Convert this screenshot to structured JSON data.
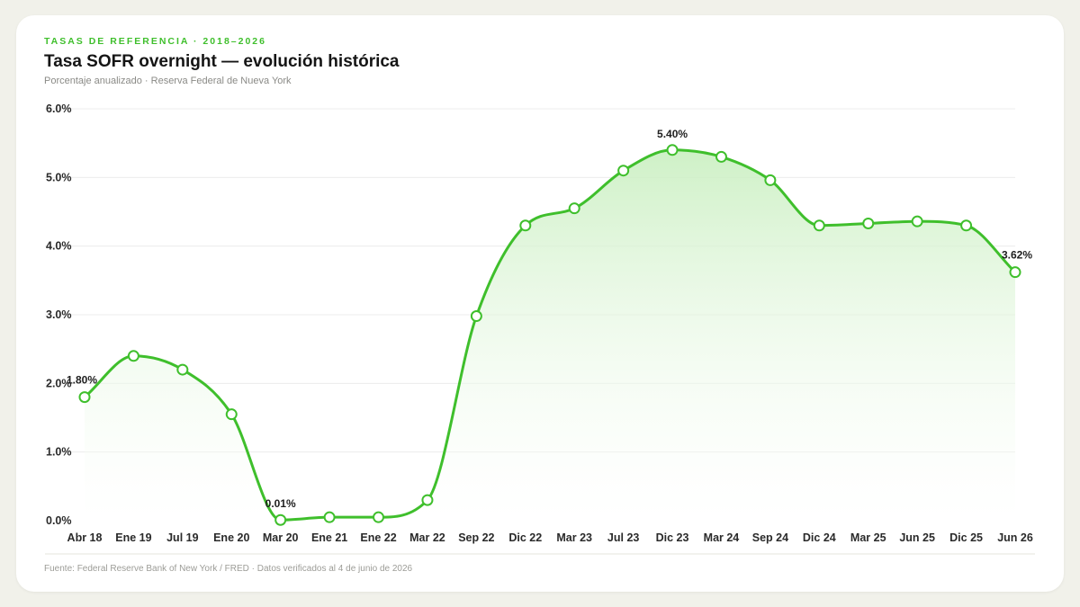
{
  "header": {
    "kicker": "TASAS DE REFERENCIA · 2018–2026",
    "title": "Tasa SOFR overnight — evolución histórica",
    "subtitle": "Porcentaje anualizado · Reserva Federal de Nueva York"
  },
  "footer": {
    "source": "Fuente: Federal Reserve Bank of New York / FRED · Datos verificados al 4 de junio de 2026"
  },
  "colors": {
    "line": "#3fbf2c",
    "fill_top": "#c9efc0",
    "grid": "#ececec",
    "accent": "#3fbf2c"
  },
  "chart_data": {
    "type": "area",
    "title": "Tasa SOFR overnight — evolución histórica",
    "ylim": [
      0,
      6
    ],
    "yticks": [
      "0.0%",
      "1.0%",
      "2.0%",
      "3.0%",
      "4.0%",
      "5.0%",
      "6.0%"
    ],
    "grid": true,
    "categories": [
      "Abr 18",
      "Ene 19",
      "Jul 19",
      "Ene 20",
      "Mar 20",
      "Ene 21",
      "Ene 22",
      "Mar 22",
      "Sep 22",
      "Dic 22",
      "Mar 23",
      "Jul 23",
      "Dic 23",
      "Mar 24",
      "Sep 24",
      "Dic 24",
      "Mar 25",
      "Jun 25",
      "Dic 25",
      "Jun 26"
    ],
    "values": [
      1.8,
      2.4,
      2.2,
      1.55,
      0.01,
      0.05,
      0.05,
      0.3,
      2.98,
      4.3,
      4.55,
      5.1,
      5.4,
      5.3,
      4.96,
      4.3,
      4.33,
      4.36,
      4.3,
      3.62
    ],
    "annotations": [
      {
        "index": 0,
        "text": "1.80%"
      },
      {
        "index": 4,
        "text": "0.01%"
      },
      {
        "index": 12,
        "text": "5.40%"
      },
      {
        "index": 19,
        "text": "3.62%"
      }
    ]
  }
}
